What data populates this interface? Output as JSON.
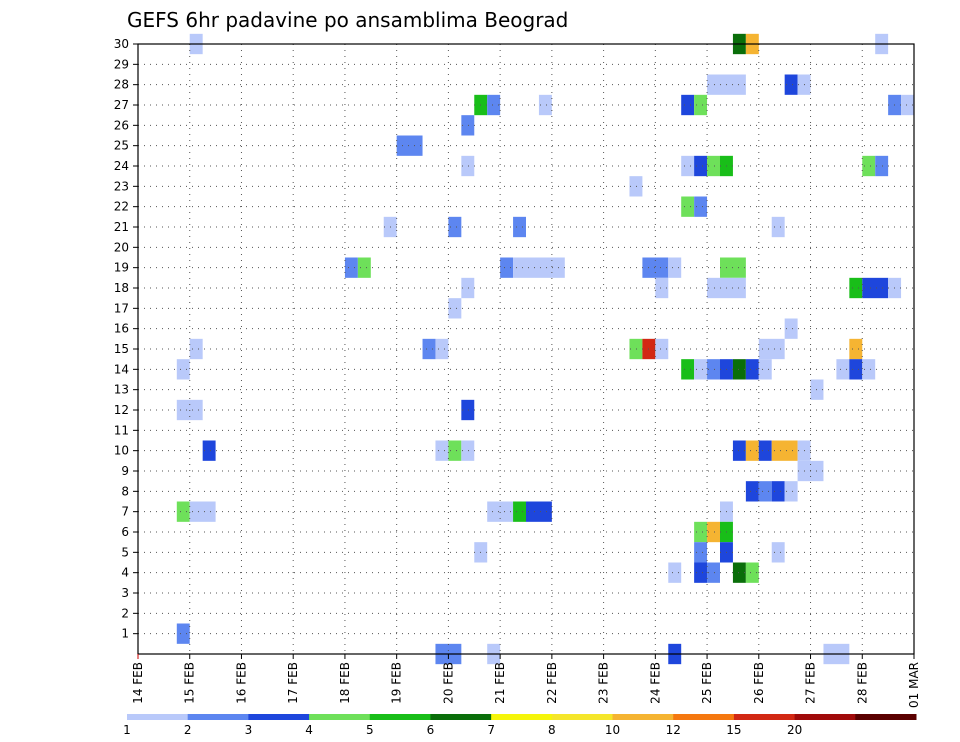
{
  "chart_data": {
    "type": "heatmap",
    "title": "GEFS 6hr padavine po ansamblima Beograd",
    "xlabel": "",
    "ylabel": "",
    "x_ticks": [
      "14 FEB",
      "15 FEB",
      "16 FEB",
      "17 FEB",
      "18 FEB",
      "19 FEB",
      "20 FEB",
      "21 FEB",
      "22 FEB",
      "23 FEB",
      "24 FEB",
      "25 FEB",
      "26 FEB",
      "27 FEB",
      "28 FEB",
      "01 MAR"
    ],
    "y_ticks": [
      "1",
      "2",
      "3",
      "4",
      "5",
      "6",
      "7",
      "8",
      "9",
      "10",
      "11",
      "12",
      "13",
      "14",
      "15",
      "16",
      "17",
      "18",
      "19",
      "20",
      "21",
      "22",
      "23",
      "24",
      "25",
      "26",
      "27",
      "28",
      "29",
      "30"
    ],
    "x_range_days": [
      0,
      15
    ],
    "y_range": [
      0,
      30
    ],
    "grid": true,
    "legend": {
      "placement": "bottom",
      "labels": [
        "1",
        "2",
        "3",
        "4",
        "5",
        "6",
        "7",
        "8",
        "10",
        "12",
        "15",
        "20"
      ],
      "colors": [
        "#b9c9fa",
        "#5d86f0",
        "#1e46dc",
        "#6ee05a",
        "#19be19",
        "#0a6e0a",
        "#f5f50a",
        "#f5e62a",
        "#f5b432",
        "#f5780f",
        "#d22814",
        "#a00a0a",
        "#5a0000"
      ]
    },
    "cells": [
      {
        "x": 1.0,
        "w": 0.25,
        "y": 30,
        "level": 1
      },
      {
        "x": 11.5,
        "w": 0.25,
        "y": 30,
        "level": 6
      },
      {
        "x": 11.75,
        "w": 0.25,
        "y": 30,
        "level": 9
      },
      {
        "x": 14.25,
        "w": 0.25,
        "y": 30,
        "level": 1
      },
      {
        "x": 11.0,
        "w": 0.75,
        "y": 28,
        "level": 1
      },
      {
        "x": 12.5,
        "w": 0.25,
        "y": 28,
        "level": 3
      },
      {
        "x": 12.75,
        "w": 0.25,
        "y": 28,
        "level": 1
      },
      {
        "x": 6.5,
        "w": 0.25,
        "y": 27,
        "level": 5
      },
      {
        "x": 6.75,
        "w": 0.25,
        "y": 27,
        "level": 2
      },
      {
        "x": 7.75,
        "w": 0.25,
        "y": 27,
        "level": 1
      },
      {
        "x": 10.5,
        "w": 0.25,
        "y": 27,
        "level": 3
      },
      {
        "x": 10.75,
        "w": 0.25,
        "y": 27,
        "level": 4
      },
      {
        "x": 14.5,
        "w": 0.25,
        "y": 27,
        "level": 2
      },
      {
        "x": 14.75,
        "w": 0.25,
        "y": 27,
        "level": 1
      },
      {
        "x": 6.25,
        "w": 0.25,
        "y": 26,
        "level": 2
      },
      {
        "x": 5.0,
        "w": 0.5,
        "y": 25,
        "level": 2
      },
      {
        "x": 6.25,
        "w": 0.25,
        "y": 24,
        "level": 1
      },
      {
        "x": 10.5,
        "w": 0.25,
        "y": 24,
        "level": 1
      },
      {
        "x": 10.75,
        "w": 0.25,
        "y": 24,
        "level": 3
      },
      {
        "x": 11.0,
        "w": 0.25,
        "y": 24,
        "level": 4
      },
      {
        "x": 11.25,
        "w": 0.25,
        "y": 24,
        "level": 5
      },
      {
        "x": 14.0,
        "w": 0.25,
        "y": 24,
        "level": 4
      },
      {
        "x": 14.25,
        "w": 0.25,
        "y": 24,
        "level": 2
      },
      {
        "x": 9.5,
        "w": 0.25,
        "y": 23,
        "level": 1
      },
      {
        "x": 10.5,
        "w": 0.25,
        "y": 22,
        "level": 4
      },
      {
        "x": 10.75,
        "w": 0.25,
        "y": 22,
        "level": 2
      },
      {
        "x": 4.75,
        "w": 0.25,
        "y": 21,
        "level": 1
      },
      {
        "x": 6.0,
        "w": 0.25,
        "y": 21,
        "level": 2
      },
      {
        "x": 7.25,
        "w": 0.25,
        "y": 21,
        "level": 2
      },
      {
        "x": 12.25,
        "w": 0.25,
        "y": 21,
        "level": 1
      },
      {
        "x": 4.0,
        "w": 0.25,
        "y": 19,
        "level": 2
      },
      {
        "x": 4.25,
        "w": 0.25,
        "y": 19,
        "level": 4
      },
      {
        "x": 7.0,
        "w": 0.25,
        "y": 19,
        "level": 2
      },
      {
        "x": 7.25,
        "w": 1.0,
        "y": 19,
        "level": 1
      },
      {
        "x": 9.75,
        "w": 0.5,
        "y": 19,
        "level": 2
      },
      {
        "x": 10.25,
        "w": 0.25,
        "y": 19,
        "level": 1
      },
      {
        "x": 11.25,
        "w": 0.5,
        "y": 19,
        "level": 4
      },
      {
        "x": 6.25,
        "w": 0.25,
        "y": 18,
        "level": 1
      },
      {
        "x": 10.0,
        "w": 0.25,
        "y": 18,
        "level": 1
      },
      {
        "x": 11.0,
        "w": 0.75,
        "y": 18,
        "level": 1
      },
      {
        "x": 13.75,
        "w": 0.25,
        "y": 18,
        "level": 5
      },
      {
        "x": 14.0,
        "w": 0.5,
        "y": 18,
        "level": 3
      },
      {
        "x": 14.5,
        "w": 0.25,
        "y": 18,
        "level": 1
      },
      {
        "x": 6.0,
        "w": 0.25,
        "y": 17,
        "level": 1
      },
      {
        "x": 12.5,
        "w": 0.25,
        "y": 16,
        "level": 1
      },
      {
        "x": 1.0,
        "w": 0.25,
        "y": 15,
        "level": 1
      },
      {
        "x": 5.5,
        "w": 0.25,
        "y": 15,
        "level": 2
      },
      {
        "x": 5.75,
        "w": 0.25,
        "y": 15,
        "level": 1
      },
      {
        "x": 9.5,
        "w": 0.25,
        "y": 15,
        "level": 4
      },
      {
        "x": 9.75,
        "w": 0.25,
        "y": 15,
        "level": 11
      },
      {
        "x": 10.0,
        "w": 0.25,
        "y": 15,
        "level": 1
      },
      {
        "x": 12.0,
        "w": 0.5,
        "y": 15,
        "level": 1
      },
      {
        "x": 13.75,
        "w": 0.25,
        "y": 15,
        "level": 9
      },
      {
        "x": 0.75,
        "w": 0.25,
        "y": 14,
        "level": 1
      },
      {
        "x": 10.5,
        "w": 0.25,
        "y": 14,
        "level": 5
      },
      {
        "x": 10.75,
        "w": 0.25,
        "y": 14,
        "level": 1
      },
      {
        "x": 11.0,
        "w": 0.25,
        "y": 14,
        "level": 2
      },
      {
        "x": 11.25,
        "w": 0.25,
        "y": 14,
        "level": 3
      },
      {
        "x": 11.5,
        "w": 0.25,
        "y": 14,
        "level": 6
      },
      {
        "x": 11.75,
        "w": 0.25,
        "y": 14,
        "level": 3
      },
      {
        "x": 12.0,
        "w": 0.25,
        "y": 14,
        "level": 1
      },
      {
        "x": 13.5,
        "w": 0.25,
        "y": 14,
        "level": 1
      },
      {
        "x": 13.75,
        "w": 0.25,
        "y": 14,
        "level": 3
      },
      {
        "x": 14.0,
        "w": 0.25,
        "y": 14,
        "level": 1
      },
      {
        "x": 13.0,
        "w": 0.25,
        "y": 13,
        "level": 1
      },
      {
        "x": 0.75,
        "w": 0.5,
        "y": 12,
        "level": 1
      },
      {
        "x": 6.25,
        "w": 0.25,
        "y": 12,
        "level": 3
      },
      {
        "x": 1.25,
        "w": 0.25,
        "y": 10,
        "level": 3
      },
      {
        "x": 5.75,
        "w": 0.25,
        "y": 10,
        "level": 1
      },
      {
        "x": 6.0,
        "w": 0.25,
        "y": 10,
        "level": 4
      },
      {
        "x": 6.25,
        "w": 0.25,
        "y": 10,
        "level": 1
      },
      {
        "x": 11.5,
        "w": 0.25,
        "y": 10,
        "level": 3
      },
      {
        "x": 11.75,
        "w": 0.25,
        "y": 10,
        "level": 9
      },
      {
        "x": 12.0,
        "w": 0.25,
        "y": 10,
        "level": 3
      },
      {
        "x": 12.25,
        "w": 0.5,
        "y": 10,
        "level": 9
      },
      {
        "x": 12.75,
        "w": 0.25,
        "y": 10,
        "level": 1
      },
      {
        "x": 12.75,
        "w": 0.5,
        "y": 9,
        "level": 1
      },
      {
        "x": 11.75,
        "w": 0.25,
        "y": 8,
        "level": 3
      },
      {
        "x": 12.0,
        "w": 0.25,
        "y": 8,
        "level": 2
      },
      {
        "x": 12.25,
        "w": 0.25,
        "y": 8,
        "level": 3
      },
      {
        "x": 12.5,
        "w": 0.25,
        "y": 8,
        "level": 1
      },
      {
        "x": 0.75,
        "w": 0.25,
        "y": 7,
        "level": 4
      },
      {
        "x": 1.0,
        "w": 0.5,
        "y": 7,
        "level": 1
      },
      {
        "x": 6.75,
        "w": 0.5,
        "y": 7,
        "level": 1
      },
      {
        "x": 7.25,
        "w": 0.25,
        "y": 7,
        "level": 5
      },
      {
        "x": 7.5,
        "w": 0.5,
        "y": 7,
        "level": 3
      },
      {
        "x": 11.25,
        "w": 0.25,
        "y": 7,
        "level": 1
      },
      {
        "x": 10.75,
        "w": 0.25,
        "y": 6,
        "level": 4
      },
      {
        "x": 11.0,
        "w": 0.25,
        "y": 6,
        "level": 9
      },
      {
        "x": 11.25,
        "w": 0.25,
        "y": 6,
        "level": 5
      },
      {
        "x": 6.5,
        "w": 0.25,
        "y": 5,
        "level": 1
      },
      {
        "x": 10.75,
        "w": 0.25,
        "y": 5,
        "level": 2
      },
      {
        "x": 11.25,
        "w": 0.25,
        "y": 5,
        "level": 3
      },
      {
        "x": 12.25,
        "w": 0.25,
        "y": 5,
        "level": 1
      },
      {
        "x": 10.25,
        "w": 0.25,
        "y": 4,
        "level": 1
      },
      {
        "x": 10.75,
        "w": 0.25,
        "y": 4,
        "level": 3
      },
      {
        "x": 11.0,
        "w": 0.25,
        "y": 4,
        "level": 2
      },
      {
        "x": 11.5,
        "w": 0.25,
        "y": 4,
        "level": 6
      },
      {
        "x": 11.75,
        "w": 0.25,
        "y": 4,
        "level": 4
      },
      {
        "x": 0.75,
        "w": 0.25,
        "y": 1,
        "level": 2
      },
      {
        "x": 5.75,
        "w": 0.5,
        "y": 0,
        "level": 2
      },
      {
        "x": 6.75,
        "w": 0.25,
        "y": 0,
        "level": 1
      },
      {
        "x": 10.25,
        "w": 0.25,
        "y": 0,
        "level": 3
      },
      {
        "x": 13.25,
        "w": 0.5,
        "y": 0,
        "level": 1
      }
    ]
  }
}
